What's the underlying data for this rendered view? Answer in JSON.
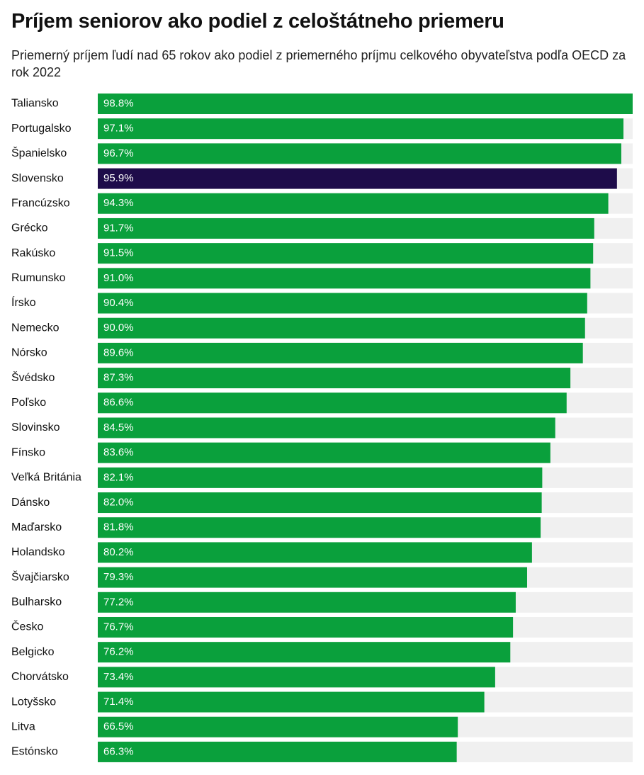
{
  "chart_data": {
    "type": "bar",
    "orientation": "horizontal",
    "title": "Príjem seniorov ako podiel z celoštátneho priemeru",
    "subtitle": "Priemerný príjem ľudí nad 65 rokov ako podiel z priemerného príjmu celkového obyvateľstva podľa OECD za rok 2022",
    "categories": [
      "Taliansko",
      "Portugalsko",
      "Španielsko",
      "Slovensko",
      "Francúzsko",
      "Grécko",
      "Rakúsko",
      "Rumunsko",
      "Írsko",
      "Nemecko",
      "Nórsko",
      "Švédsko",
      "Poľsko",
      "Slovinsko",
      "Fínsko",
      "Veľká Británia",
      "Dánsko",
      "Maďarsko",
      "Holandsko",
      "Švajčiarsko",
      "Bulharsko",
      "Česko",
      "Belgicko",
      "Chorvátsko",
      "Lotyšsko",
      "Litva",
      "Estónsko"
    ],
    "values": [
      98.8,
      97.1,
      96.7,
      95.9,
      94.3,
      91.7,
      91.5,
      91.0,
      90.4,
      90.0,
      89.6,
      87.3,
      86.6,
      84.5,
      83.6,
      82.1,
      82.0,
      81.8,
      80.2,
      79.3,
      77.2,
      76.7,
      76.2,
      73.4,
      71.4,
      66.5,
      66.3
    ],
    "value_labels": [
      "98.8%",
      "97.1%",
      "96.7%",
      "95.9%",
      "94.3%",
      "91.7%",
      "91.5%",
      "91.0%",
      "90.4%",
      "90.0%",
      "89.6%",
      "87.3%",
      "86.6%",
      "84.5%",
      "83.6%",
      "82.1%",
      "82.0%",
      "81.8%",
      "80.2%",
      "79.3%",
      "77.2%",
      "76.7%",
      "76.2%",
      "73.4%",
      "71.4%",
      "66.5%",
      "66.3%"
    ],
    "colors": [
      "#0aa03c",
      "#0aa03c",
      "#0aa03c",
      "#1e0c4a",
      "#0aa03c",
      "#0aa03c",
      "#0aa03c",
      "#0aa03c",
      "#0aa03c",
      "#0aa03c",
      "#0aa03c",
      "#0aa03c",
      "#0aa03c",
      "#0aa03c",
      "#0aa03c",
      "#0aa03c",
      "#0aa03c",
      "#0aa03c",
      "#0aa03c",
      "#0aa03c",
      "#0aa03c",
      "#0aa03c",
      "#0aa03c",
      "#0aa03c",
      "#0aa03c",
      "#0aa03c",
      "#0aa03c"
    ],
    "track_color": "#f0f0f0",
    "xlim": [
      0,
      98.8
    ]
  }
}
